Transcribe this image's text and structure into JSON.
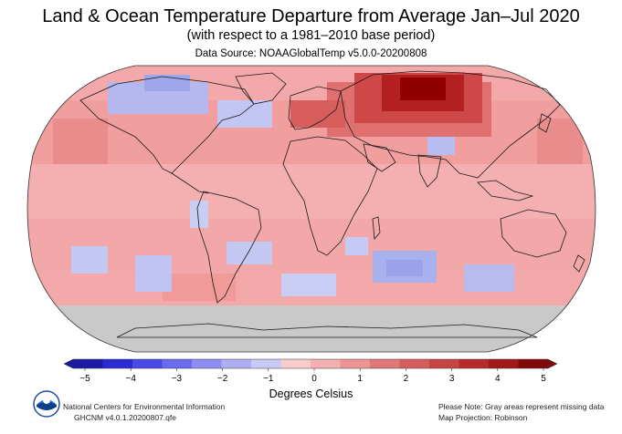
{
  "title": "Land & Ocean Temperature Departure from Average Jan–Jul 2020",
  "subtitle": "(with respect to a 1981–2010 base period)",
  "data_source": "Data Source: NOAAGlobalTemp v5.0.0-20200808",
  "colorbar": {
    "label": "Degrees Celsius",
    "ticks": [
      "−5",
      "−4",
      "−3",
      "−2",
      "−1",
      "0",
      "1",
      "2",
      "3",
      "4",
      "5"
    ],
    "colors": [
      "#1a1aa6",
      "#2b2bd6",
      "#4a4ae8",
      "#6b6bf0",
      "#8d8df2",
      "#aeaef5",
      "#c9c9f8",
      "#f6cccc",
      "#f2b0b0",
      "#ec9494",
      "#e07878",
      "#d45e5e",
      "#c84444",
      "#b82a2a",
      "#a01818",
      "#800808"
    ]
  },
  "map": {
    "ocean_color": "#f3a6a6",
    "land_color": "#f09a9a",
    "missing_color": "#c8c8c8",
    "warm_strong_color": "#a00000",
    "cool_color": "#aeb4ee"
  },
  "footer_left": {
    "line1": "National Centers for Environmental Information",
    "line2": "GHCNM v4.0.1.20200807.qfe"
  },
  "footer_right": {
    "line1": "Please Note: Gray areas represent missing data",
    "line2": "Map Projection: Robinson"
  },
  "logo": {
    "text": "NOAA"
  }
}
